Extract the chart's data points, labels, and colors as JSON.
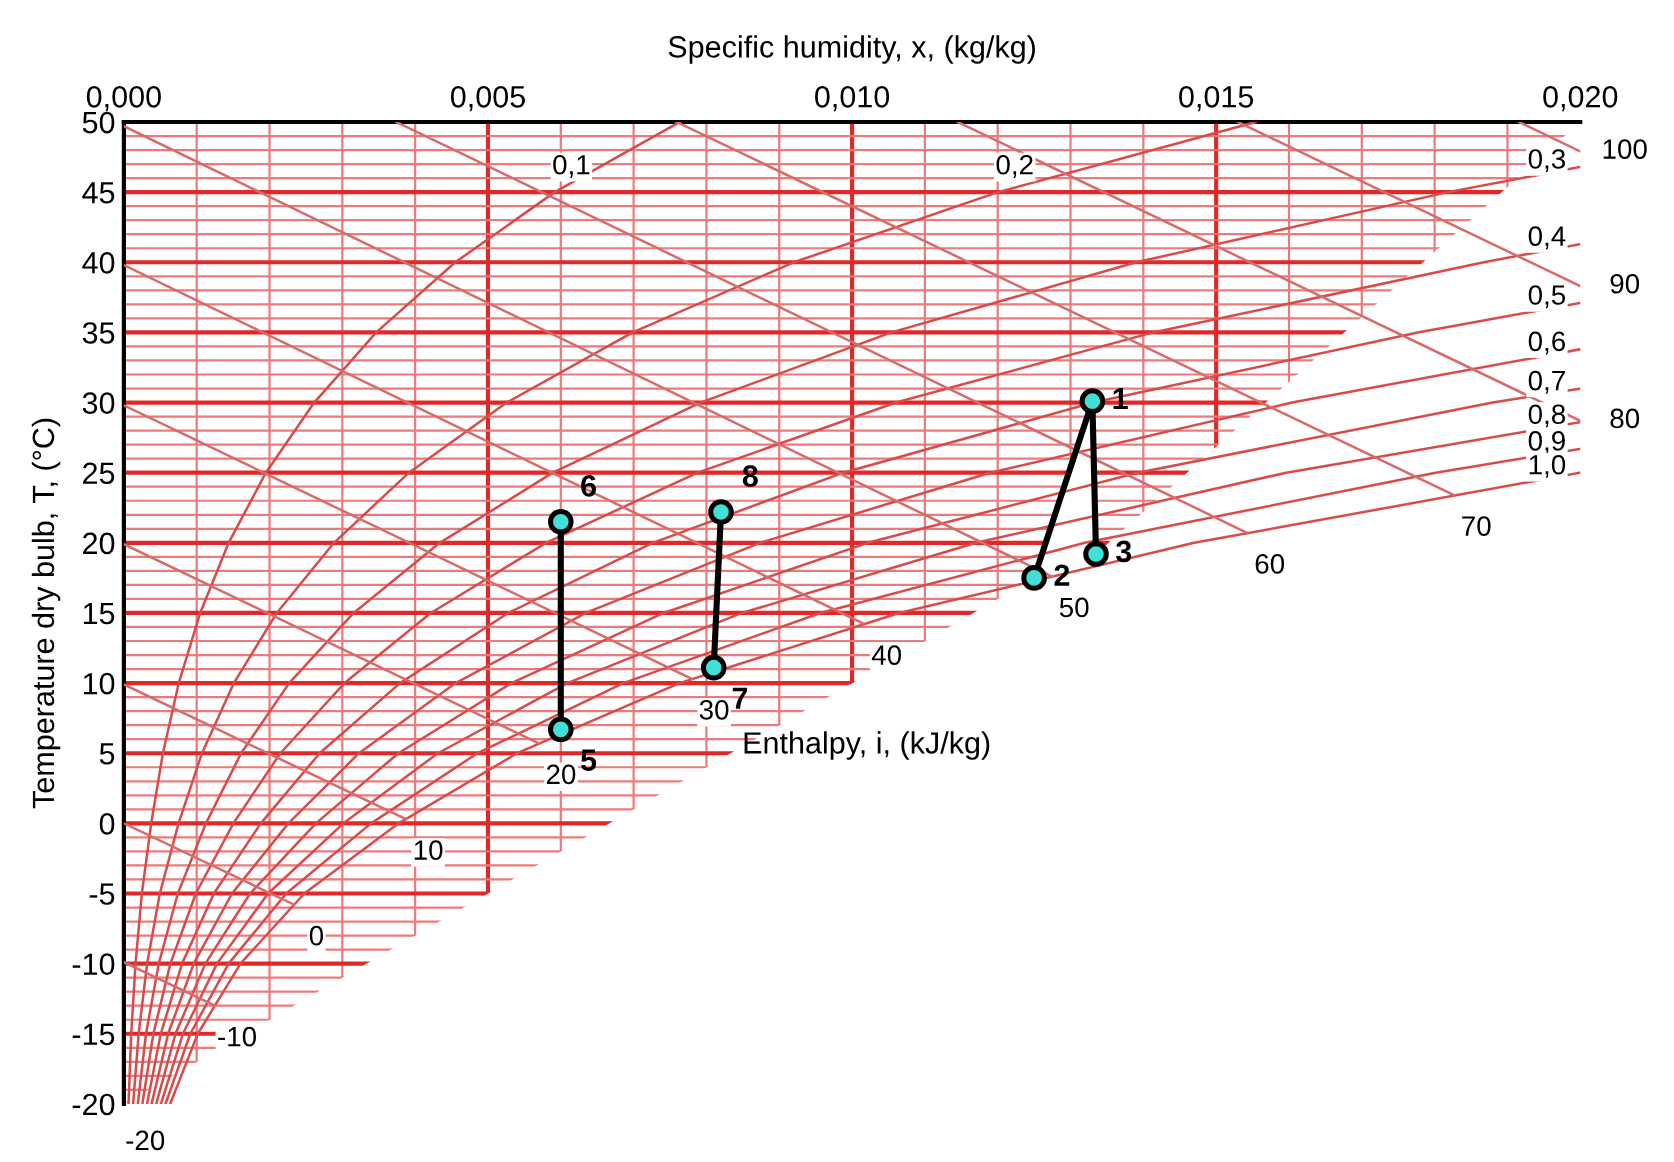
{
  "chart_data": {
    "type": "line",
    "xlabel": "Specific humidity, x, (kg/kg)",
    "ylabel": "Temperature dry bulb, T, (°C)",
    "xlim": [
      0,
      0.02
    ],
    "xticks": [
      {
        "value": 0,
        "label": "0,000"
      },
      {
        "value": 0.001,
        "label": null
      },
      {
        "value": 0.002,
        "label": null
      },
      {
        "value": 0.003,
        "label": null
      },
      {
        "value": 0.004,
        "label": null
      },
      {
        "value": 0.005,
        "label": "0,005"
      },
      {
        "value": 0.006,
        "label": null
      },
      {
        "value": 0.007,
        "label": null
      },
      {
        "value": 0.008,
        "label": null
      },
      {
        "value": 0.009,
        "label": null
      },
      {
        "value": 0.01,
        "label": "0,010"
      },
      {
        "value": 0.011,
        "label": null
      },
      {
        "value": 0.012,
        "label": null
      },
      {
        "value": 0.013,
        "label": null
      },
      {
        "value": 0.014,
        "label": null
      },
      {
        "value": 0.015,
        "label": "0,015"
      },
      {
        "value": 0.016,
        "label": null
      },
      {
        "value": 0.017,
        "label": null
      },
      {
        "value": 0.018,
        "label": null
      },
      {
        "value": 0.019,
        "label": null
      },
      {
        "value": 0.02,
        "label": "0,020"
      }
    ],
    "ylim": [
      -20,
      50
    ],
    "yticks": [
      -20,
      {
        "value": -19,
        "label": null
      },
      {
        "value": -18,
        "label": null
      },
      {
        "value": -17,
        "label": null
      },
      {
        "value": -16,
        "label": null
      },
      -15,
      {
        "value": -14,
        "label": null
      },
      {
        "value": -13,
        "label": null
      },
      {
        "value": -12,
        "label": null
      },
      {
        "value": -11,
        "label": null
      },
      -10,
      {
        "value": -9,
        "label": null
      },
      {
        "value": -8,
        "label": null
      },
      {
        "value": -7,
        "label": null
      },
      {
        "value": -6,
        "label": null
      },
      -5,
      {
        "value": -4,
        "label": null
      },
      {
        "value": -3,
        "label": null
      },
      {
        "value": -2,
        "label": null
      },
      {
        "value": -1,
        "label": null
      },
      0,
      {
        "value": 1,
        "label": null
      },
      {
        "value": 2,
        "label": null
      },
      {
        "value": 3,
        "label": null
      },
      {
        "value": 4,
        "label": null
      },
      5,
      {
        "value": 6,
        "label": null
      },
      {
        "value": 7,
        "label": null
      },
      {
        "value": 8,
        "label": null
      },
      {
        "value": 9,
        "label": null
      },
      10,
      {
        "value": 11,
        "label": null
      },
      {
        "value": 12,
        "label": null
      },
      {
        "value": 13,
        "label": null
      },
      {
        "value": 14,
        "label": null
      },
      15,
      {
        "value": 16,
        "label": null
      },
      {
        "value": 17,
        "label": null
      },
      {
        "value": 18,
        "label": null
      },
      {
        "value": 19,
        "label": null
      },
      20,
      {
        "value": 21,
        "label": null
      },
      {
        "value": 22,
        "label": null
      },
      {
        "value": 23,
        "label": null
      },
      {
        "value": 24,
        "label": null
      },
      25,
      {
        "value": 26,
        "label": null
      },
      {
        "value": 27,
        "label": null
      },
      {
        "value": 28,
        "label": null
      },
      {
        "value": 29,
        "label": null
      },
      30,
      {
        "value": 31,
        "label": null
      },
      {
        "value": 32,
        "label": null
      },
      {
        "value": 33,
        "label": null
      },
      {
        "value": 34,
        "label": null
      },
      35,
      {
        "value": 36,
        "label": null
      },
      {
        "value": 37,
        "label": null
      },
      {
        "value": 38,
        "label": null
      },
      {
        "value": 39,
        "label": null
      },
      40,
      {
        "value": 41,
        "label": null
      },
      {
        "value": 42,
        "label": null
      },
      {
        "value": 43,
        "label": null
      },
      {
        "value": 44,
        "label": null
      },
      45,
      {
        "value": 46,
        "label": null
      },
      {
        "value": 47,
        "label": null
      },
      {
        "value": 48,
        "label": null
      },
      {
        "value": 49,
        "label": null
      },
      50
    ],
    "grid": true,
    "series": [
      {
        "color": "#d94a4a",
        "x": [
          6.4e-05,
          0.000101,
          0.00016,
          0.000247,
          0.000375,
          0.000536,
          0.000754,
          0.001048,
          0.001439,
          0.00195,
          0.002614,
          0.003466,
          0.004551,
          0.005917,
          0.007632
        ],
        "values": [
          -20,
          -15,
          -10,
          -5,
          0,
          5,
          10,
          15,
          20,
          25,
          30,
          35,
          40,
          45,
          50
        ]
      },
      {
        "color": "#d94a4a",
        "x": [
          0.000127,
          0.000203,
          0.000319,
          0.000494,
          0.000751,
          0.001072,
          0.001511,
          0.0021,
          0.002885,
          0.003915,
          0.005257,
          0.006987,
          0.0092,
          0.012005,
          0.015541
        ],
        "values": [
          -20,
          -15,
          -10,
          -5,
          0,
          5,
          10,
          15,
          20,
          25,
          30,
          35,
          40,
          45,
          50
        ]
      },
      {
        "color": "#d94a4a",
        "x": [
          0.000191,
          0.000304,
          0.000479,
          0.000741,
          0.001127,
          0.00161,
          0.00227,
          0.003156,
          0.004338,
          0.005891,
          0.007919,
          0.01054,
          0.013902,
          0.018183,
          0.02
        ],
        "values": [
          -20,
          -15,
          -10,
          -5,
          0,
          5,
          10,
          15,
          20,
          25,
          30,
          35,
          40,
          45,
          46.8
        ]
      },
      {
        "color": "#d94a4a",
        "x": [
          0.000254,
          0.000405,
          0.000639,
          0.000988,
          0.001504,
          0.002149,
          0.00303,
          0.004215,
          0.005797,
          0.00788,
          0.010604,
          0.014133,
          0.018676,
          0.02
        ],
        "values": [
          -20,
          -15,
          -10,
          -5,
          0,
          5,
          10,
          15,
          20,
          25,
          30,
          35,
          40,
          41.3
        ]
      },
      {
        "color": "#d94a4a",
        "x": [
          0.000318,
          0.000507,
          0.000799,
          0.001236,
          0.001881,
          0.002688,
          0.003792,
          0.005278,
          0.007263,
          0.009881,
          0.013311,
          0.017768,
          0.02
        ],
        "values": [
          -20,
          -15,
          -10,
          -5,
          0,
          5,
          10,
          15,
          20,
          25,
          30,
          35,
          37.1
        ]
      },
      {
        "color": "#d94a4a",
        "x": [
          0.000381,
          0.000608,
          0.000959,
          0.001485,
          0.002259,
          0.003228,
          0.004556,
          0.006344,
          0.008736,
          0.011896,
          0.016042,
          0.02
        ],
        "values": [
          -20,
          -15,
          -10,
          -5,
          0,
          5,
          10,
          15,
          20,
          25,
          30,
          33.8
        ]
      },
      {
        "color": "#d94a4a",
        "x": [
          0.000445,
          0.000709,
          0.001119,
          0.001733,
          0.002637,
          0.00377,
          0.005322,
          0.007414,
          0.010216,
          0.013922,
          0.018797,
          0.02
        ],
        "values": [
          -20,
          -15,
          -10,
          -5,
          0,
          5,
          10,
          15,
          20,
          25,
          30,
          31.0
        ]
      },
      {
        "color": "#d94a4a",
        "x": [
          0.000509,
          0.000811,
          0.001279,
          0.00198,
          0.003015,
          0.004312,
          0.00609,
          0.008487,
          0.011703,
          0.015962,
          0.02
        ],
        "values": [
          -20,
          -15,
          -10,
          -5,
          0,
          5,
          10,
          15,
          20,
          25,
          28.6
        ]
      },
      {
        "color": "#d94a4a",
        "x": [
          0.000572,
          0.000912,
          0.001439,
          0.002229,
          0.003394,
          0.004855,
          0.006859,
          0.009565,
          0.013197,
          0.018015,
          0.02
        ],
        "values": [
          -20,
          -15,
          -10,
          -5,
          0,
          5,
          10,
          15,
          20,
          25,
          26.7
        ]
      },
      {
        "color": "#d94a4a",
        "x": [
          0.000636,
          0.001015,
          0.001601,
          0.002478,
          0.003774,
          0.0054,
          0.007631,
          0.010646,
          0.014698,
          0.02
        ],
        "values": [
          -20,
          -15,
          -10,
          -5,
          0,
          5,
          10,
          15,
          20,
          25
        ]
      },
      {
        "color": "#d96a6a",
        "x": [
          0.001249,
          0
        ],
        "values": [
          -13.0,
          -9.9
        ]
      },
      {
        "color": "#d96a6a",
        "x": [
          0.002339,
          0
        ],
        "values": [
          -5.8,
          0
        ]
      },
      {
        "color": "#d96a6a",
        "x": [
          0.003873,
          0
        ],
        "values": [
          0.3,
          9.9
        ]
      },
      {
        "color": "#d96a6a",
        "x": [
          0.005697,
          0
        ],
        "values": [
          5.7,
          19.9
        ]
      },
      {
        "color": "#d96a6a",
        "x": [
          0.0078,
          0
        ],
        "values": [
          10.3,
          29.8
        ]
      },
      {
        "color": "#d96a6a",
        "x": [
          0.01017,
          0
        ],
        "values": [
          14.2,
          39.8
        ]
      },
      {
        "color": "#d96a6a",
        "x": [
          0.012745,
          0
        ],
        "values": [
          17.6,
          49.7
        ]
      },
      {
        "color": "#d96a6a",
        "x": [
          0.01543,
          0.00374
        ],
        "values": [
          20.7,
          50
        ]
      },
      {
        "color": "#d96a6a",
        "x": [
          0.018266,
          0.00759
        ],
        "values": [
          23.4,
          50
        ]
      },
      {
        "color": "#d96a6a",
        "x": [
          0.02,
          0.01145
        ],
        "values": [
          28.7,
          50
        ]
      },
      {
        "color": "#d96a6a",
        "x": [
          0.02,
          0.0153
        ],
        "values": [
          38.3,
          50
        ]
      },
      {
        "color": "#d96a6a",
        "x": [
          0.02,
          0.01916
        ],
        "values": [
          47.9,
          50
        ]
      },
      {
        "color": "#000000",
        "x": [
          0.0125,
          0.0133,
          0.01335
        ],
        "values": [
          17.5,
          30.1,
          19.2
        ]
      },
      {
        "color": "#000000",
        "x": [
          0.006,
          0.006
        ],
        "values": [
          21.5,
          6.7
        ]
      },
      {
        "color": "#000000",
        "x": [
          0.0082,
          0.0081
        ],
        "values": [
          22.2,
          11.1
        ]
      },
      {
        "type": "scatter",
        "color": "#3ee0d8",
        "x": [
          0.0133,
          0.0125,
          0.01335,
          0.006,
          0.006,
          0.0081,
          0.0082
        ],
        "values": [
          30.1,
          17.5,
          19.2,
          6.7,
          21.5,
          11.1,
          22.2
        ]
      }
    ],
    "annotations": [
      "Enthalpy, i, (kJ/kg)",
      {
        "text": "1",
        "x": 0.0133,
        "y": 30.1
      },
      {
        "text": "2",
        "x": 0.0125,
        "y": 17.5
      },
      {
        "text": "3",
        "x": 0.01335,
        "y": 19.2
      },
      {
        "text": "5",
        "x": 0.006,
        "y": 6.7
      },
      {
        "text": "6",
        "x": 0.006,
        "y": 21.5
      },
      {
        "text": "7",
        "x": 0.0081,
        "y": 11.1
      },
      {
        "text": "8",
        "x": 0.0082,
        "y": 22.2
      },
      {
        "text": "-20",
        "x": 6.4e-05,
        "y": -20
      },
      {
        "text": "-10",
        "x": 0.001249,
        "y": -13.0
      },
      {
        "text": "0",
        "x": 0.002339,
        "y": -5.8
      },
      {
        "text": "10",
        "x": 0.003873,
        "y": 0.3
      },
      {
        "text": "20",
        "x": 0.005697,
        "y": 5.7
      },
      {
        "text": "30",
        "x": 0.0078,
        "y": 10.3
      },
      {
        "text": "40",
        "x": 0.01017,
        "y": 14.2
      },
      {
        "text": "50",
        "x": 0.012745,
        "y": 17.6
      },
      {
        "text": "60",
        "x": 0.01543,
        "y": 20.7
      },
      {
        "text": "70",
        "x": 0.018266,
        "y": 23.4
      },
      {
        "text": "80",
        "x": 0.02,
        "y": 28.7
      },
      {
        "text": "90",
        "x": 0.02,
        "y": 38.3
      },
      {
        "text": "100",
        "x": 0.02,
        "y": 47.9
      },
      {
        "text": "0,1",
        "x": 0.005917,
        "y": 45
      },
      {
        "text": "0,2",
        "x": 0.012005,
        "y": 45
      },
      {
        "text": "0,3",
        "x": 0.02,
        "y": 46.8
      },
      {
        "text": "0,4",
        "x": 0.02,
        "y": 41.3
      },
      {
        "text": "0,5",
        "x": 0.02,
        "y": 37.1
      },
      {
        "text": "0,6",
        "x": 0.02,
        "y": 33.8
      },
      {
        "text": "0,7",
        "x": 0.02,
        "y": 31.0
      },
      {
        "text": "0,8",
        "x": 0.02,
        "y": 28.6
      },
      {
        "text": "0,9",
        "x": 0.02,
        "y": 26.7
      },
      {
        "text": "1,0",
        "x": 0.02,
        "y": 25
      }
    ]
  }
}
